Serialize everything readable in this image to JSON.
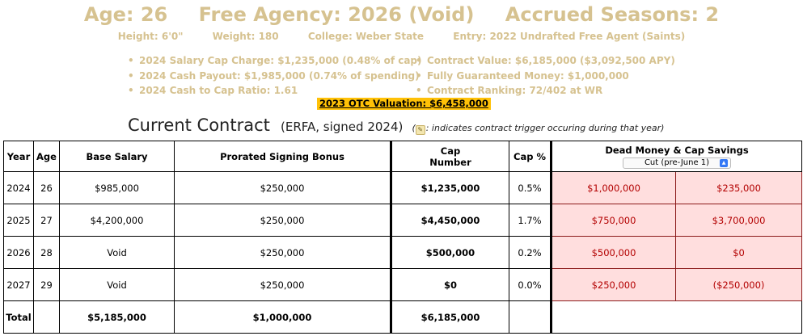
{
  "player": {
    "age": "Age: 26",
    "free_agency": "Free Agency: 2026 (Void)",
    "accrued": "Accrued Seasons: 2",
    "height": "Height: 6'0\"",
    "weight": "Weight: 180",
    "college": "College: Weber State",
    "entry": "Entry: 2022 Undrafted Free Agent (Saints)"
  },
  "bullets_left": [
    "2024 Salary Cap Charge: $1,235,000 (0.48% of cap)",
    "2024 Cash Payout: $1,985,000 (0.74% of spending)",
    "2024 Cash to Cap Ratio: 1.61"
  ],
  "bullets_right": [
    "Contract Value: $6,185,000 ($3,092,500 APY)",
    "Fully Guaranteed Money: $1,000,000",
    "Contract Ranking: 72/402 at WR"
  ],
  "valuation": "2023 OTC Valuation: $6,458,000",
  "contract": {
    "title": "Current Contract",
    "subtitle": "(ERFA, signed 2024)",
    "note_open": "(",
    "note_text": ": indicates contract trigger occuring during that year)",
    "note_icon": "note-icon"
  },
  "table": {
    "headers": {
      "year": "Year",
      "age": "Age",
      "base": "Base Salary",
      "prorated": "Prorated Signing Bonus",
      "cap_number_1": "Cap",
      "cap_number_2": "Number",
      "cap_pct": "Cap %",
      "dead": "Dead Money & Cap Savings",
      "dropdown": "Cut (pre-June 1)"
    },
    "rows": [
      {
        "year": "2024",
        "age": "26",
        "base": "$985,000",
        "prorated": "$250,000",
        "cap": "$1,235,000",
        "pct": "0.5%",
        "dead": "$1,000,000",
        "savings": "$235,000"
      },
      {
        "year": "2025",
        "age": "27",
        "base": "$4,200,000",
        "prorated": "$250,000",
        "cap": "$4,450,000",
        "pct": "1.7%",
        "dead": "$750,000",
        "savings": "$3,700,000"
      },
      {
        "year": "2026",
        "age": "28",
        "base": "Void",
        "prorated": "$250,000",
        "cap": "$500,000",
        "pct": "0.2%",
        "dead": "$500,000",
        "savings": "$0"
      },
      {
        "year": "2027",
        "age": "29",
        "base": "Void",
        "prorated": "$250,000",
        "cap": "$0",
        "pct": "0.0%",
        "dead": "$250,000",
        "savings": "($250,000)"
      }
    ],
    "total": {
      "label": "Total",
      "base": "$5,185,000",
      "prorated": "$1,000,000",
      "cap": "$6,185,000"
    }
  },
  "colors": {
    "gold": "#d6c290",
    "highlight": "#ffc107",
    "dead_bg": "#ffdede",
    "dead_text": "#b30000"
  }
}
